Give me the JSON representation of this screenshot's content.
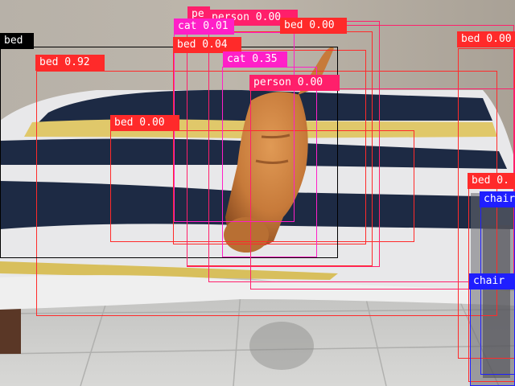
{
  "image": {
    "description_tags": [
      "orange-cat",
      "bed",
      "striped-blanket",
      "tile-floor",
      "beige-wall"
    ],
    "colors": {
      "wall": "#b8b1a6",
      "floor": "#cfcfcc",
      "stripe_navy": "#1d2a44",
      "stripe_white": "#e8e8ea",
      "stripe_yellow": "#e0c86a",
      "cat": "#c77a3a",
      "bed_frame": "#5a3726"
    }
  },
  "detections": [
    {
      "label": "bed",
      "color": "#ff2a2a"
    },
    {
      "label": "bed",
      "color": "#ff2a2a"
    },
    {
      "label": "bed",
      "color": "#ff2a2a"
    },
    {
      "label": "bed",
      "color": "#ff2a2a"
    },
    {
      "label": "bed",
      "color": "#ff2a2a"
    },
    {
      "label": "bed",
      "color": "#ff2a2a"
    },
    {
      "label": "bed",
      "color": "#000000"
    },
    {
      "label": "person",
      "color": "#ff1f6b"
    },
    {
      "label": "person",
      "color": "#ff1f6b"
    },
    {
      "label": "person",
      "color": "#ff1f6b"
    },
    {
      "label": "cat",
      "color": "#ff1fc8"
    },
    {
      "label": "cat",
      "color": "#ff1fc8"
    },
    {
      "label": "chair",
      "color": "#1f1fff"
    },
    {
      "label": "chair",
      "color": "#1f1fff"
    }
  ],
  "labels": [
    "pe",
    "person 0.00",
    "cat 0.01",
    "bed 0.00",
    "bed 0.00",
    "bed",
    "bed 0.04",
    "cat 0.35",
    "bed 0.92",
    "person 0.00",
    "bed 0.00",
    "bed 0.",
    "chair",
    "chair"
  ]
}
